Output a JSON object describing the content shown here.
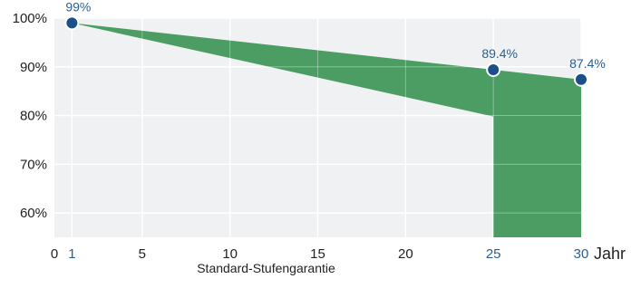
{
  "chart_data": {
    "type": "area",
    "caption": "Standard-Stufengarantie",
    "x_unit_label": "Jahr",
    "xlim": [
      0,
      30
    ],
    "ylim": [
      55,
      100
    ],
    "x_ticks": [
      {
        "value": 0,
        "label": "0",
        "highlight": false
      },
      {
        "value": 1,
        "label": "1",
        "highlight": true
      },
      {
        "value": 5,
        "label": "5",
        "highlight": false
      },
      {
        "value": 10,
        "label": "10",
        "highlight": false
      },
      {
        "value": 15,
        "label": "15",
        "highlight": false
      },
      {
        "value": 20,
        "label": "20",
        "highlight": false
      },
      {
        "value": 25,
        "label": "25",
        "highlight": true
      },
      {
        "value": 30,
        "label": "30",
        "highlight": true
      }
    ],
    "y_ticks": [
      {
        "value": 100,
        "label": "100%"
      },
      {
        "value": 90,
        "label": "90%"
      },
      {
        "value": 80,
        "label": "80%"
      },
      {
        "value": 70,
        "label": "70%"
      },
      {
        "value": 60,
        "label": "60%"
      }
    ],
    "grid": true,
    "series": [
      {
        "name": "",
        "role": "guarantee-line",
        "points": [
          {
            "x": 1,
            "y": 99,
            "label": "99%"
          },
          {
            "x": 25,
            "y": 89.4,
            "label": "89.4%"
          },
          {
            "x": 30,
            "y": 87.4,
            "label": "87.4%"
          }
        ]
      },
      {
        "name": "",
        "role": "step-guarantee",
        "points": [
          {
            "x": 1,
            "y": 99
          },
          {
            "x": 25,
            "y": 79.8
          },
          {
            "x": 25,
            "y": 55
          },
          {
            "x": 30,
            "y": 55
          }
        ]
      }
    ],
    "colors": {
      "plot_background": "#eff1f2",
      "area_fill": "#4b9d64",
      "marker": "#1a4f8a",
      "grid": "#ffffff",
      "label_highlight": "#2a5f93"
    }
  }
}
